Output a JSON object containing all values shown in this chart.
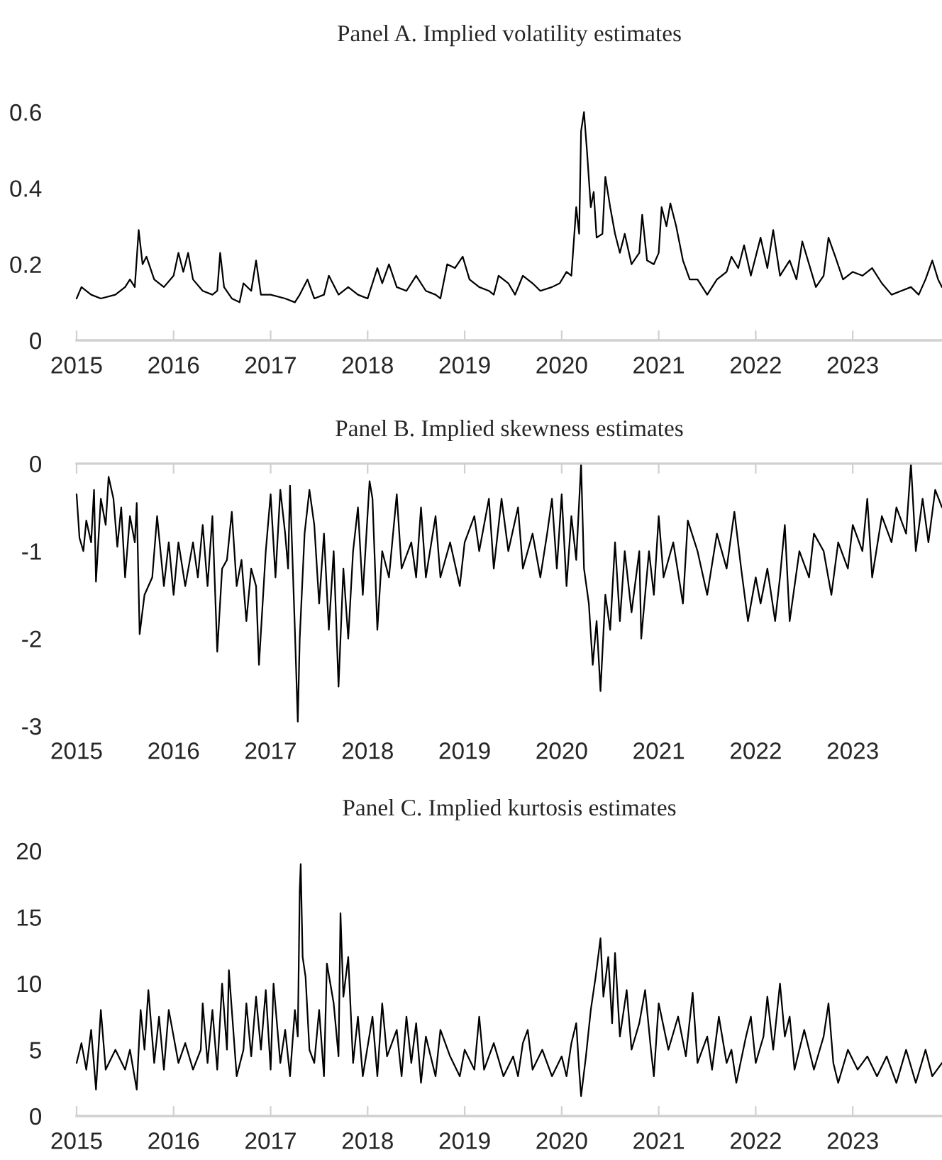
{
  "chart_data": [
    {
      "type": "line",
      "title": "Panel A. Implied volatility estimates",
      "xlim": [
        2015,
        2023.92
      ],
      "xticks": [
        2015,
        2016,
        2017,
        2018,
        2019,
        2020,
        2021,
        2022,
        2023
      ],
      "ylim": [
        0,
        0.6
      ],
      "yticks": [
        0,
        0.2,
        0.4,
        0.6
      ],
      "series": [
        {
          "color": "#000000",
          "x": [
            2015.0,
            2015.05,
            2015.15,
            2015.25,
            2015.4,
            2015.5,
            2015.55,
            2015.6,
            2015.64,
            2015.68,
            2015.72,
            2015.8,
            2015.9,
            2016.0,
            2016.05,
            2016.1,
            2016.15,
            2016.2,
            2016.3,
            2016.4,
            2016.45,
            2016.48,
            2016.52,
            2016.6,
            2016.68,
            2016.72,
            2016.8,
            2016.85,
            2016.9,
            2017.0,
            2017.15,
            2017.25,
            2017.3,
            2017.38,
            2017.45,
            2017.55,
            2017.6,
            2017.7,
            2017.8,
            2017.9,
            2018.0,
            2018.1,
            2018.15,
            2018.22,
            2018.3,
            2018.4,
            2018.5,
            2018.6,
            2018.7,
            2018.75,
            2018.82,
            2018.9,
            2018.98,
            2019.05,
            2019.15,
            2019.25,
            2019.3,
            2019.35,
            2019.45,
            2019.52,
            2019.6,
            2019.7,
            2019.78,
            2019.9,
            2019.98,
            2020.05,
            2020.1,
            2020.15,
            2020.18,
            2020.2,
            2020.23,
            2020.26,
            2020.3,
            2020.33,
            2020.36,
            2020.42,
            2020.45,
            2020.5,
            2020.55,
            2020.6,
            2020.65,
            2020.72,
            2020.8,
            2020.83,
            2020.88,
            2020.95,
            2021.0,
            2021.03,
            2021.08,
            2021.12,
            2021.18,
            2021.25,
            2021.32,
            2021.4,
            2021.5,
            2021.6,
            2021.7,
            2021.75,
            2021.82,
            2021.88,
            2021.95,
            2022.05,
            2022.12,
            2022.18,
            2022.25,
            2022.35,
            2022.42,
            2022.48,
            2022.55,
            2022.62,
            2022.7,
            2022.75,
            2022.82,
            2022.9,
            2023.0,
            2023.1,
            2023.2,
            2023.3,
            2023.4,
            2023.5,
            2023.6,
            2023.68,
            2023.75,
            2023.82,
            2023.88,
            2023.92
          ],
          "values": [
            0.11,
            0.14,
            0.12,
            0.11,
            0.12,
            0.14,
            0.16,
            0.14,
            0.29,
            0.2,
            0.22,
            0.16,
            0.14,
            0.17,
            0.23,
            0.18,
            0.23,
            0.16,
            0.13,
            0.12,
            0.13,
            0.23,
            0.14,
            0.11,
            0.1,
            0.15,
            0.13,
            0.21,
            0.12,
            0.12,
            0.11,
            0.1,
            0.12,
            0.16,
            0.11,
            0.12,
            0.17,
            0.12,
            0.14,
            0.12,
            0.11,
            0.19,
            0.15,
            0.2,
            0.14,
            0.13,
            0.17,
            0.13,
            0.12,
            0.11,
            0.2,
            0.19,
            0.22,
            0.16,
            0.14,
            0.13,
            0.12,
            0.17,
            0.15,
            0.12,
            0.17,
            0.15,
            0.13,
            0.14,
            0.15,
            0.18,
            0.17,
            0.35,
            0.28,
            0.55,
            0.6,
            0.5,
            0.35,
            0.39,
            0.27,
            0.28,
            0.43,
            0.35,
            0.28,
            0.23,
            0.28,
            0.2,
            0.23,
            0.33,
            0.21,
            0.2,
            0.23,
            0.35,
            0.3,
            0.36,
            0.3,
            0.21,
            0.16,
            0.16,
            0.12,
            0.16,
            0.18,
            0.22,
            0.19,
            0.25,
            0.17,
            0.27,
            0.19,
            0.29,
            0.17,
            0.21,
            0.16,
            0.26,
            0.2,
            0.14,
            0.17,
            0.27,
            0.22,
            0.16,
            0.18,
            0.17,
            0.19,
            0.15,
            0.12,
            0.13,
            0.14,
            0.12,
            0.16,
            0.21,
            0.16,
            0.14
          ]
        }
      ]
    },
    {
      "type": "line",
      "title": "Panel B. Implied skewness estimates",
      "xlim": [
        2015,
        2023.92
      ],
      "xticks": [
        2015,
        2016,
        2017,
        2018,
        2019,
        2020,
        2021,
        2022,
        2023
      ],
      "ylim": [
        -3,
        0
      ],
      "yticks": [
        -3,
        -2,
        -1,
        0
      ],
      "series": [
        {
          "color": "#000000",
          "x": [
            2015.0,
            2015.03,
            2015.07,
            2015.1,
            2015.15,
            2015.18,
            2015.2,
            2015.25,
            2015.3,
            2015.33,
            2015.38,
            2015.42,
            2015.46,
            2015.5,
            2015.55,
            2015.6,
            2015.62,
            2015.65,
            2015.7,
            2015.78,
            2015.83,
            2015.9,
            2015.95,
            2016.0,
            2016.05,
            2016.12,
            2016.2,
            2016.25,
            2016.3,
            2016.35,
            2016.4,
            2016.45,
            2016.5,
            2016.55,
            2016.6,
            2016.65,
            2016.7,
            2016.75,
            2016.8,
            2016.85,
            2016.88,
            2016.95,
            2017.0,
            2017.05,
            2017.1,
            2017.15,
            2017.18,
            2017.2,
            2017.25,
            2017.28,
            2017.3,
            2017.35,
            2017.4,
            2017.45,
            2017.5,
            2017.55,
            2017.6,
            2017.65,
            2017.7,
            2017.75,
            2017.8,
            2017.85,
            2017.9,
            2017.95,
            2018.02,
            2018.05,
            2018.1,
            2018.15,
            2018.22,
            2018.3,
            2018.35,
            2018.45,
            2018.5,
            2018.55,
            2018.6,
            2018.7,
            2018.75,
            2018.85,
            2018.95,
            2019.0,
            2019.1,
            2019.15,
            2019.25,
            2019.3,
            2019.38,
            2019.45,
            2019.55,
            2019.6,
            2019.7,
            2019.78,
            2019.85,
            2019.9,
            2019.95,
            2020.0,
            2020.05,
            2020.1,
            2020.15,
            2020.2,
            2020.23,
            2020.28,
            2020.32,
            2020.36,
            2020.4,
            2020.45,
            2020.5,
            2020.55,
            2020.6,
            2020.65,
            2020.72,
            2020.8,
            2020.82,
            2020.9,
            2020.95,
            2021.0,
            2021.05,
            2021.15,
            2021.25,
            2021.3,
            2021.4,
            2021.5,
            2021.6,
            2021.7,
            2021.78,
            2021.85,
            2021.92,
            2022.0,
            2022.05,
            2022.12,
            2022.2,
            2022.25,
            2022.3,
            2022.35,
            2022.45,
            2022.55,
            2022.6,
            2022.7,
            2022.78,
            2022.85,
            2022.95,
            2023.0,
            2023.1,
            2023.15,
            2023.2,
            2023.3,
            2023.4,
            2023.45,
            2023.55,
            2023.6,
            2023.65,
            2023.72,
            2023.78,
            2023.85,
            2023.92
          ],
          "values": [
            -0.35,
            -0.85,
            -1.0,
            -0.65,
            -0.9,
            -0.3,
            -1.35,
            -0.4,
            -0.7,
            -0.15,
            -0.4,
            -0.95,
            -0.5,
            -1.3,
            -0.6,
            -0.9,
            -0.45,
            -1.95,
            -1.5,
            -1.3,
            -0.6,
            -1.4,
            -0.9,
            -1.5,
            -0.9,
            -1.4,
            -0.9,
            -1.3,
            -0.7,
            -1.4,
            -0.6,
            -2.15,
            -1.2,
            -1.1,
            -0.55,
            -1.4,
            -1.1,
            -1.8,
            -1.2,
            -1.4,
            -2.3,
            -1.0,
            -0.35,
            -1.3,
            -0.3,
            -0.8,
            -1.2,
            -0.25,
            -1.9,
            -2.95,
            -2.0,
            -0.8,
            -0.3,
            -0.7,
            -1.6,
            -0.8,
            -1.9,
            -1.0,
            -2.55,
            -1.2,
            -2.0,
            -1.0,
            -0.5,
            -1.5,
            -0.2,
            -0.4,
            -1.9,
            -1.0,
            -1.3,
            -0.35,
            -1.2,
            -0.9,
            -1.3,
            -0.5,
            -1.3,
            -0.6,
            -1.3,
            -0.9,
            -1.4,
            -0.9,
            -0.6,
            -1.0,
            -0.4,
            -1.2,
            -0.4,
            -1.0,
            -0.5,
            -1.2,
            -0.8,
            -1.3,
            -0.8,
            -0.4,
            -1.2,
            -0.35,
            -1.4,
            -0.6,
            -1.1,
            0.0,
            -1.2,
            -1.6,
            -2.3,
            -1.8,
            -2.6,
            -1.5,
            -1.9,
            -0.9,
            -1.8,
            -1.0,
            -1.7,
            -1.0,
            -2.0,
            -1.0,
            -1.5,
            -0.6,
            -1.3,
            -0.9,
            -1.6,
            -0.65,
            -1.0,
            -1.5,
            -0.8,
            -1.2,
            -0.55,
            -1.2,
            -1.8,
            -1.3,
            -1.6,
            -1.2,
            -1.8,
            -1.3,
            -0.7,
            -1.8,
            -1.0,
            -1.3,
            -0.8,
            -1.0,
            -1.5,
            -0.9,
            -1.2,
            -0.7,
            -1.0,
            -0.4,
            -1.3,
            -0.6,
            -0.9,
            -0.5,
            -0.8,
            0.0,
            -1.0,
            -0.4,
            -0.9,
            -0.3,
            -0.5
          ]
        }
      ]
    },
    {
      "type": "line",
      "title": "Panel C. Implied kurtosis estimates",
      "xlim": [
        2015,
        2023.92
      ],
      "xticks": [
        2015,
        2016,
        2017,
        2018,
        2019,
        2020,
        2021,
        2022,
        2023
      ],
      "ylim": [
        0,
        20
      ],
      "yticks": [
        0,
        5,
        10,
        15,
        20
      ],
      "series": [
        {
          "color": "#000000",
          "x": [
            2015.0,
            2015.05,
            2015.1,
            2015.15,
            2015.2,
            2015.25,
            2015.3,
            2015.4,
            2015.5,
            2015.55,
            2015.62,
            2015.66,
            2015.7,
            2015.74,
            2015.8,
            2015.85,
            2015.9,
            2015.95,
            2016.05,
            2016.12,
            2016.2,
            2016.28,
            2016.3,
            2016.35,
            2016.4,
            2016.45,
            2016.5,
            2016.55,
            2016.57,
            2016.65,
            2016.72,
            2016.75,
            2016.8,
            2016.85,
            2016.9,
            2016.95,
            2017.0,
            2017.03,
            2017.1,
            2017.15,
            2017.2,
            2017.25,
            2017.28,
            2017.3,
            2017.31,
            2017.33,
            2017.36,
            2017.4,
            2017.45,
            2017.5,
            2017.55,
            2017.58,
            2017.65,
            2017.7,
            2017.72,
            2017.75,
            2017.8,
            2017.85,
            2017.9,
            2017.95,
            2018.05,
            2018.1,
            2018.15,
            2018.2,
            2018.3,
            2018.35,
            2018.4,
            2018.45,
            2018.5,
            2018.55,
            2018.6,
            2018.7,
            2018.75,
            2018.85,
            2018.95,
            2019.0,
            2019.1,
            2019.15,
            2019.2,
            2019.3,
            2019.4,
            2019.5,
            2019.55,
            2019.6,
            2019.65,
            2019.7,
            2019.8,
            2019.9,
            2020.0,
            2020.05,
            2020.1,
            2020.15,
            2020.18,
            2020.2,
            2020.25,
            2020.3,
            2020.35,
            2020.4,
            2020.43,
            2020.48,
            2020.52,
            2020.55,
            2020.6,
            2020.67,
            2020.72,
            2020.8,
            2020.86,
            2020.92,
            2020.95,
            2021.0,
            2021.1,
            2021.2,
            2021.28,
            2021.35,
            2021.4,
            2021.5,
            2021.55,
            2021.62,
            2021.7,
            2021.75,
            2021.8,
            2021.9,
            2021.95,
            2022.0,
            2022.08,
            2022.12,
            2022.18,
            2022.25,
            2022.3,
            2022.35,
            2022.4,
            2022.5,
            2022.6,
            2022.7,
            2022.75,
            2022.8,
            2022.85,
            2022.95,
            2023.05,
            2023.15,
            2023.25,
            2023.35,
            2023.45,
            2023.55,
            2023.65,
            2023.75,
            2023.82,
            2023.92
          ],
          "values": [
            4.0,
            5.5,
            3.5,
            6.5,
            2.0,
            8.0,
            3.5,
            5.0,
            3.5,
            5.0,
            2.0,
            8.0,
            5.0,
            9.5,
            4.0,
            7.5,
            3.5,
            8.0,
            4.0,
            5.5,
            3.5,
            5.0,
            8.5,
            4.0,
            8.0,
            3.5,
            10.0,
            5.0,
            11.0,
            3.0,
            5.0,
            8.5,
            4.5,
            9.0,
            5.0,
            9.5,
            3.5,
            10.0,
            4.0,
            6.5,
            3.0,
            8.0,
            6.0,
            17.0,
            19.0,
            12.0,
            10.5,
            5.0,
            4.0,
            8.0,
            3.0,
            11.5,
            8.5,
            4.5,
            15.3,
            9.0,
            12.0,
            4.0,
            7.5,
            3.0,
            7.5,
            3.0,
            8.5,
            4.5,
            6.5,
            3.0,
            7.5,
            4.0,
            7.0,
            2.5,
            6.0,
            3.0,
            6.5,
            4.5,
            3.0,
            5.0,
            3.5,
            7.5,
            3.5,
            5.5,
            3.0,
            4.5,
            3.0,
            5.5,
            6.5,
            3.5,
            5.0,
            3.0,
            4.5,
            3.0,
            5.5,
            7.0,
            3.5,
            1.5,
            4.5,
            8.0,
            10.5,
            13.4,
            9.0,
            12.0,
            7.0,
            12.3,
            6.0,
            9.5,
            5.0,
            7.0,
            9.5,
            5.0,
            3.0,
            8.5,
            5.0,
            7.5,
            4.5,
            9.3,
            4.0,
            6.0,
            3.5,
            7.5,
            4.0,
            5.0,
            2.5,
            6.0,
            7.5,
            4.0,
            6.0,
            9.0,
            5.0,
            10.0,
            6.0,
            7.5,
            3.5,
            6.5,
            3.5,
            6.0,
            8.5,
            4.0,
            2.5,
            5.0,
            3.5,
            4.5,
            3.0,
            4.5,
            2.5,
            5.0,
            2.5,
            5.0,
            3.0,
            4.0
          ]
        }
      ]
    }
  ]
}
